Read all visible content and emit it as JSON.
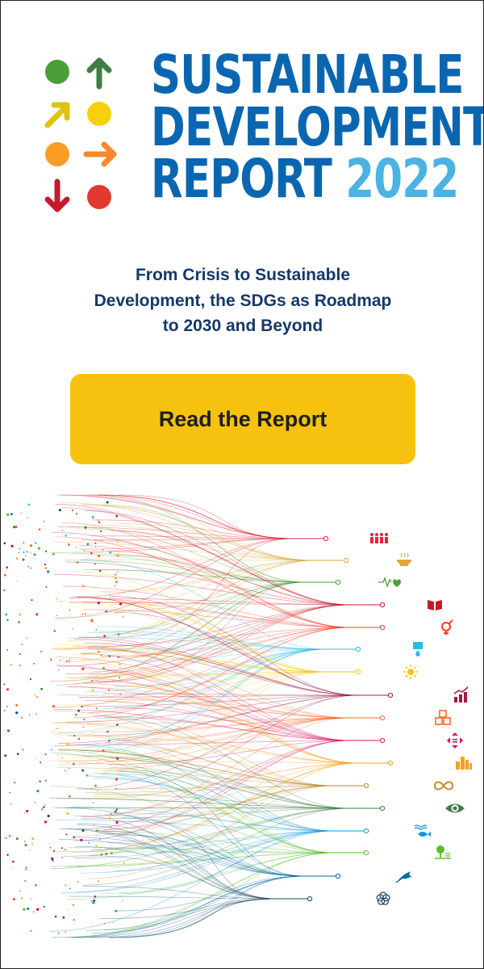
{
  "header": {
    "title_line1": "SUSTAINABLE",
    "title_line2": "DEVELOPMENT",
    "title_line3_word": "REPORT",
    "title_line3_year": "2022"
  },
  "subtitle": {
    "line1": "From Crisis to Sustainable",
    "line2": "Development, the SDGs as Roadmap",
    "line3": "to 2030 and Beyond"
  },
  "cta": {
    "label": "Read the Report"
  },
  "colors": {
    "title_blue": "#0a66b0",
    "year_blue": "#4ab3e2",
    "subtitle_navy": "#16386a",
    "cta_yellow": "#f7c10f",
    "logo": [
      "#4c9f38",
      "#3f7e44",
      "#dfc30f",
      "#f6d10b",
      "#f99d26",
      "#f9892c",
      "#c5192d",
      "#e03a30"
    ]
  },
  "sdg_icons": [
    {
      "goal": 1,
      "color": "#e5243b",
      "icon": "people-icon"
    },
    {
      "goal": 2,
      "color": "#dda63a",
      "icon": "bowl-icon"
    },
    {
      "goal": 3,
      "color": "#4c9f38",
      "icon": "heartbeat-icon"
    },
    {
      "goal": 4,
      "color": "#c5192d",
      "icon": "book-icon"
    },
    {
      "goal": 5,
      "color": "#ff3a21",
      "icon": "gender-icon"
    },
    {
      "goal": 6,
      "color": "#26bde2",
      "icon": "water-drop-icon"
    },
    {
      "goal": 7,
      "color": "#fcc30b",
      "icon": "sun-icon"
    },
    {
      "goal": 8,
      "color": "#a21942",
      "icon": "growth-chart-icon"
    },
    {
      "goal": 9,
      "color": "#fd6925",
      "icon": "cubes-icon"
    },
    {
      "goal": 10,
      "color": "#dd1367",
      "icon": "equality-arrows-icon"
    },
    {
      "goal": 11,
      "color": "#fd9d24",
      "icon": "city-icon"
    },
    {
      "goal": 12,
      "color": "#bf8b2e",
      "icon": "infinity-icon"
    },
    {
      "goal": 13,
      "color": "#3f7e44",
      "icon": "eye-globe-icon"
    },
    {
      "goal": 14,
      "color": "#0a97d9",
      "icon": "fish-icon"
    },
    {
      "goal": 15,
      "color": "#56c02b",
      "icon": "tree-icon"
    },
    {
      "goal": 16,
      "color": "#00689d",
      "icon": "dove-icon"
    },
    {
      "goal": 17,
      "color": "#19486a",
      "icon": "rings-icon"
    }
  ]
}
